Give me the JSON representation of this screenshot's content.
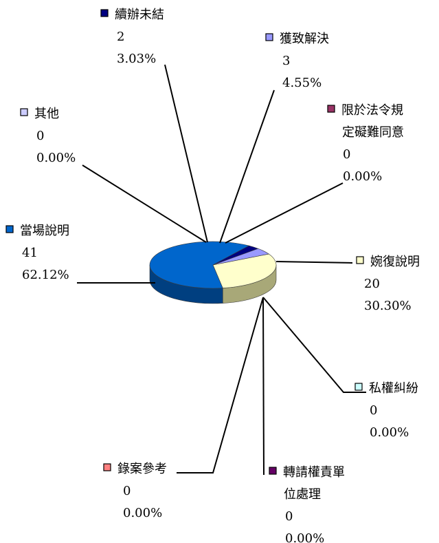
{
  "chart_data": {
    "type": "pie",
    "title": "",
    "slices": [
      {
        "name": "婉復說明",
        "count": "20",
        "percent": "30.30%",
        "value": 20,
        "color": "#ffffcc",
        "side_color": "#a8a878"
      },
      {
        "name": "私權糾紛",
        "count": "0",
        "percent": "0.00%",
        "value": 0,
        "color": "#ccffff",
        "side_color": "#86a8a8"
      },
      {
        "name": "轉請權責單位處理",
        "count": "0",
        "percent": "0.00%",
        "value": 0,
        "color": "#660066",
        "side_color": "#3d003d"
      },
      {
        "name": "錄案參考",
        "count": "0",
        "percent": "0.00%",
        "value": 0,
        "color": "#ff8080",
        "side_color": "#a85454"
      },
      {
        "name": "當場說明",
        "count": "41",
        "percent": "62.12%",
        "value": 41,
        "color": "#0066cc",
        "side_color": "#003f80"
      },
      {
        "name": "其他",
        "count": "0",
        "percent": "0.00%",
        "value": 0,
        "color": "#ccccff",
        "side_color": "#8686a8"
      },
      {
        "name": "續辦未結",
        "count": "2",
        "percent": "3.03%",
        "value": 2,
        "color": "#000080",
        "side_color": "#000050"
      },
      {
        "name": "獲致解決",
        "count": "3",
        "percent": "4.55%",
        "value": 3,
        "color": "#9999ff",
        "side_color": "#6060b0"
      },
      {
        "name": "限於法令規定礙難同意",
        "count": "0",
        "percent": "0.00%",
        "value": 0,
        "color": "#993366",
        "side_color": "#602040"
      }
    ]
  }
}
